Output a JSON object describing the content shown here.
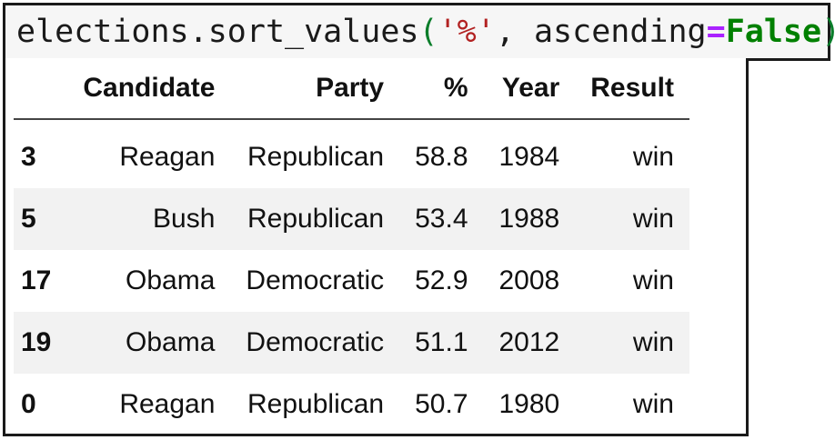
{
  "code": {
    "object": "elections",
    "method": ".sort_values",
    "open_paren": "(",
    "arg_column": "'%'",
    "separator": ", ",
    "kwarg_name": "ascending",
    "equals": "=",
    "kwarg_value": "False",
    "close_paren": ")"
  },
  "table": {
    "columns": [
      "",
      "Candidate",
      "Party",
      "%",
      "Year",
      "Result"
    ],
    "rows": [
      {
        "index": "3",
        "candidate": "Reagan",
        "party": "Republican",
        "pct": "58.8",
        "year": "1984",
        "result": "win"
      },
      {
        "index": "5",
        "candidate": "Bush",
        "party": "Republican",
        "pct": "53.4",
        "year": "1988",
        "result": "win"
      },
      {
        "index": "17",
        "candidate": "Obama",
        "party": "Democratic",
        "pct": "52.9",
        "year": "2008",
        "result": "win"
      },
      {
        "index": "19",
        "candidate": "Obama",
        "party": "Democratic",
        "pct": "51.1",
        "year": "2012",
        "result": "win"
      },
      {
        "index": "0",
        "candidate": "Reagan",
        "party": "Republican",
        "pct": "50.7",
        "year": "1980",
        "result": "win"
      }
    ]
  }
}
